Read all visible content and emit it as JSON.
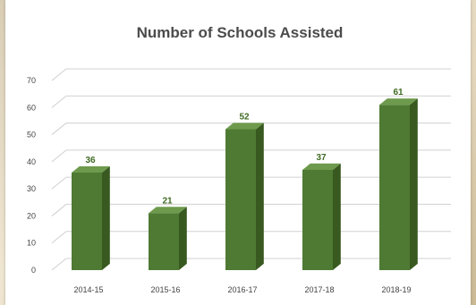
{
  "chart_data": {
    "type": "bar",
    "title": "Number of Schools Assisted",
    "xlabel": "",
    "ylabel": "",
    "categories": [
      "2014-15",
      "2015-16",
      "2016-17",
      "2017-18",
      "2018-19"
    ],
    "values": [
      36,
      21,
      52,
      37,
      61
    ],
    "ylim": [
      0,
      70
    ],
    "yticks": [
      0,
      10,
      20,
      30,
      40,
      50,
      60,
      70
    ],
    "grid": true,
    "style": "3d-column",
    "colors": {
      "bar_front": "#4e7a33",
      "bar_top": "#6e9a4d",
      "bar_side": "#38591f",
      "data_label": "#3f6a22",
      "grid": "#d0d0d0"
    }
  }
}
